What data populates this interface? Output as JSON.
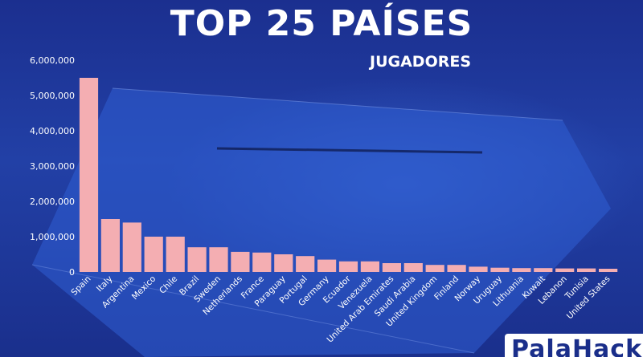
{
  "title": "TOP 25 PAÍSES",
  "subtitle": "JUGADORES",
  "logo_text": "PalaHack",
  "colors": {
    "bar": "#f4aeb2",
    "background": "#1f3aa0",
    "text": "#ffffff"
  },
  "chart_data": {
    "type": "bar",
    "title": "TOP 25 PAÍSES",
    "subtitle": "JUGADORES",
    "xlabel": "",
    "ylabel": "",
    "ylim": [
      0,
      6000000
    ],
    "yticks": [
      0,
      1000000,
      2000000,
      3000000,
      4000000,
      5000000,
      6000000
    ],
    "ytick_labels": [
      "0",
      "1,000,000",
      "2,000,000",
      "3,000,000",
      "4,000,000",
      "5,000,000",
      "6,000,000"
    ],
    "grid": false,
    "categories": [
      "Spain",
      "Italy",
      "Argentina",
      "Mexico",
      "Chile",
      "Brazil",
      "Sweden",
      "Netherlands",
      "France",
      "Paraguay",
      "Portugal",
      "Germany",
      "Ecuador",
      "Venezuela",
      "United Arab Emirates",
      "Saudi Arabia",
      "United Kingdom",
      "Finland",
      "Norway",
      "Uruguay",
      "Lithuania",
      "Kuwait",
      "Lebanon",
      "Tunisia",
      "United States"
    ],
    "values": [
      5500000,
      1500000,
      1400000,
      1000000,
      1000000,
      700000,
      700000,
      570000,
      550000,
      500000,
      450000,
      350000,
      300000,
      300000,
      250000,
      250000,
      200000,
      200000,
      150000,
      120000,
      110000,
      110000,
      100000,
      100000,
      90000
    ]
  }
}
